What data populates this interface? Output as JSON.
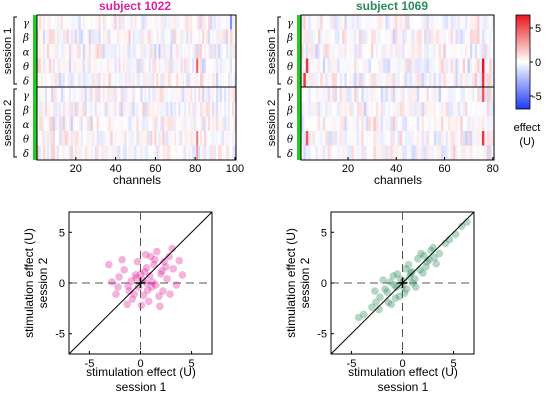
{
  "colors": {
    "subject_1022": "#e0219f",
    "subject_1069": "#2a8a5a",
    "session_marker": "#22cc22",
    "effect_positive": "#e8161b",
    "effect_negative": "#1e3cf5",
    "grid_dash": "#555555"
  },
  "heatmap_panels": [
    {
      "title": "subject 1022",
      "xlabel": "channels",
      "xticks": [
        "20",
        "40",
        "60",
        "80",
        "100"
      ],
      "x_range": [
        1,
        100
      ],
      "sessions": [
        "session 1",
        "session 2"
      ],
      "bands": [
        "γ",
        "β",
        "α",
        "θ",
        "δ"
      ]
    },
    {
      "title": "subject 1069",
      "xlabel": "channels",
      "xticks": [
        "20",
        "40",
        "60",
        "80"
      ],
      "x_range": [
        1,
        80
      ],
      "sessions": [
        "session 1",
        "session 2"
      ],
      "bands": [
        "γ",
        "β",
        "α",
        "θ",
        "δ"
      ]
    }
  ],
  "colorbar": {
    "label_line1": "effect",
    "label_line2": "(U)",
    "ticks": [
      "5",
      "0",
      "-5"
    ],
    "range": [
      -7,
      7
    ]
  },
  "scatter_panels": [
    {
      "xlabel": "stimulation effect (U)",
      "xlabel2": "session 1",
      "ylabel": "stimulation effect (U)",
      "ylabel2": "session 2",
      "xticks": [
        "-5",
        "0",
        "5"
      ],
      "yticks": [
        "5",
        "0",
        "-5"
      ]
    },
    {
      "xlabel": "stimulation effect (U)",
      "xlabel2": "session 1",
      "ylabel": "stimulation effect (U)",
      "ylabel2": "session 2",
      "xticks": [
        "-5",
        "0",
        "5"
      ],
      "yticks": [
        "5",
        "0",
        "-5"
      ]
    }
  ],
  "chart_data": [
    {
      "type": "heatmap",
      "title": "subject 1022",
      "xlabel": "channels",
      "x_range": [
        1,
        100
      ],
      "rows": [
        "session 1 γ",
        "session 1 β",
        "session 1 α",
        "session 1 θ",
        "session 1 δ",
        "session 2 γ",
        "session 2 β",
        "session 2 α",
        "session 2 θ",
        "session 2 δ"
      ],
      "value_range": [
        -7,
        7
      ],
      "highlights": [
        {
          "row": "session 1 θ",
          "channel": 81,
          "value": 5
        },
        {
          "row": "session 1 γ",
          "channel": 98,
          "value": -4
        },
        {
          "row": "session 2 θ",
          "channel": 81,
          "value": 4
        },
        {
          "row": "session 2 δ",
          "channel": 81,
          "value": 3
        }
      ]
    },
    {
      "type": "heatmap",
      "title": "subject 1069",
      "xlabel": "channels",
      "x_range": [
        1,
        80
      ],
      "rows": [
        "session 1 γ",
        "session 1 β",
        "session 1 α",
        "session 1 θ",
        "session 1 δ",
        "session 2 γ",
        "session 2 β",
        "session 2 α",
        "session 2 θ",
        "session 2 δ"
      ],
      "value_range": [
        -7,
        7
      ],
      "highlights": [
        {
          "row": "session 1 θ",
          "channel": 3,
          "value": 6
        },
        {
          "row": "session 1 δ",
          "channel": 2,
          "value": 6
        },
        {
          "row": "session 1 θ",
          "channel": 76,
          "value": 7
        },
        {
          "row": "session 1 δ",
          "channel": 76,
          "value": 6
        },
        {
          "row": "session 2 θ",
          "channel": 3,
          "value": 5
        },
        {
          "row": "session 2 θ",
          "channel": 76,
          "value": 6
        },
        {
          "row": "session 2 γ",
          "channel": 76,
          "value": 5
        }
      ]
    },
    {
      "type": "scatter",
      "xlabel": "stimulation effect (U)\nsession 1",
      "ylabel": "stimulation effect (U)\nsession 2",
      "xlim": [
        -7,
        7
      ],
      "ylim": [
        -7,
        7
      ],
      "reference_lines": [
        "y = x",
        "x = 0",
        "y = 0"
      ],
      "series": [
        {
          "color": "#e0219f",
          "points": [
            [
              0.2,
              0.3
            ],
            [
              -0.5,
              0.8
            ],
            [
              1.1,
              -0.4
            ],
            [
              0.6,
              1.5
            ],
            [
              -1.2,
              -0.3
            ],
            [
              2.1,
              1.2
            ],
            [
              1.4,
              2.3
            ],
            [
              -0.8,
              -1.6
            ],
            [
              0.3,
              -1.2
            ],
            [
              2.6,
              0.4
            ],
            [
              -2.1,
              0.6
            ],
            [
              1.8,
              -1.3
            ],
            [
              0.9,
              0.7
            ],
            [
              -0.3,
              2.1
            ],
            [
              3.2,
              1.4
            ],
            [
              -1.6,
              1.3
            ],
            [
              0.1,
              -2.2
            ],
            [
              2.3,
              2.1
            ],
            [
              -2.4,
              -1.1
            ],
            [
              1.2,
              0.1
            ],
            [
              0.7,
              -0.7
            ],
            [
              -0.9,
              0.2
            ],
            [
              3.5,
              -0.2
            ],
            [
              1.6,
              3.1
            ],
            [
              -0.2,
              -0.4
            ],
            [
              2.8,
              2.6
            ],
            [
              0.4,
              1.1
            ],
            [
              -1.3,
              -2.1
            ],
            [
              4.1,
              0.8
            ],
            [
              1.9,
              -2.3
            ],
            [
              -2.8,
              0.1
            ],
            [
              0.5,
              2.8
            ],
            [
              2.2,
              -0.8
            ],
            [
              -0.6,
              -1.1
            ],
            [
              3.1,
              3.4
            ],
            [
              -1.8,
              2.3
            ],
            [
              1.3,
              1.8
            ],
            [
              0.8,
              -1.8
            ],
            [
              2.5,
              1.6
            ],
            [
              -0.4,
              0.5
            ],
            [
              -1.1,
              -0.8
            ],
            [
              3.8,
              2.2
            ],
            [
              1.5,
              -0.2
            ],
            [
              0.0,
              0.9
            ],
            [
              2.9,
              -1.1
            ],
            [
              -2.2,
              -0.4
            ],
            [
              1.0,
              2.6
            ],
            [
              -3.1,
              1.8
            ],
            [
              0.6,
              0.0
            ],
            [
              2.0,
              0.9
            ]
          ]
        }
      ]
    },
    {
      "type": "scatter",
      "xlabel": "stimulation effect (U)\nsession 1",
      "ylabel": "stimulation effect (U)\nsession 2",
      "xlim": [
        -7,
        7
      ],
      "ylim": [
        -7,
        7
      ],
      "reference_lines": [
        "y = x",
        "x = 0",
        "y = 0"
      ],
      "series": [
        {
          "color": "#2a8a5a",
          "points": [
            [
              0.1,
              0.2
            ],
            [
              -0.6,
              -0.4
            ],
            [
              0.9,
              1.1
            ],
            [
              -1.5,
              -0.9
            ],
            [
              1.7,
              1.3
            ],
            [
              -2.2,
              -1.4
            ],
            [
              2.4,
              2.1
            ],
            [
              0.4,
              -0.6
            ],
            [
              -0.9,
              0.7
            ],
            [
              3.1,
              2.5
            ],
            [
              -3.0,
              -2.4
            ],
            [
              1.2,
              0.4
            ],
            [
              -0.3,
              -1.3
            ],
            [
              4.2,
              3.9
            ],
            [
              5.8,
              5.6
            ],
            [
              6.3,
              6.0
            ],
            [
              -1.1,
              -2.1
            ],
            [
              2.0,
              1.0
            ],
            [
              0.6,
              1.8
            ],
            [
              -1.9,
              0.3
            ],
            [
              2.8,
              3.2
            ],
            [
              -0.5,
              0.9
            ],
            [
              3.6,
              2.9
            ],
            [
              -2.7,
              -0.8
            ],
            [
              1.5,
              2.4
            ],
            [
              -3.8,
              -3.1
            ],
            [
              0.2,
              -1.0
            ],
            [
              1.0,
              0.0
            ],
            [
              -0.8,
              -0.2
            ],
            [
              2.3,
              1.6
            ],
            [
              -1.4,
              -1.9
            ],
            [
              4.6,
              4.3
            ],
            [
              0.7,
              0.6
            ],
            [
              -2.3,
              -2.6
            ],
            [
              1.8,
              2.9
            ],
            [
              -0.2,
              0.4
            ],
            [
              3.3,
              1.9
            ],
            [
              -1.7,
              -0.6
            ],
            [
              0.3,
              1.4
            ],
            [
              2.6,
              2.3
            ],
            [
              -4.3,
              -3.4
            ],
            [
              1.3,
              -0.4
            ],
            [
              -0.7,
              -1.5
            ],
            [
              5.2,
              4.8
            ],
            [
              0.8,
              1.0
            ],
            [
              -1.2,
              0.1
            ],
            [
              2.1,
              2.7
            ],
            [
              -2.6,
              -1.9
            ],
            [
              0.0,
              -0.3
            ],
            [
              3.0,
              3.5
            ]
          ]
        }
      ]
    }
  ]
}
